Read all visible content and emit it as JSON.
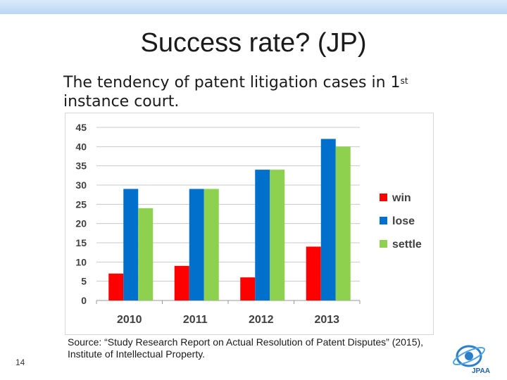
{
  "slide": {
    "title": "Success rate? (JP)",
    "subtitle_main": "The tendency of patent litigation cases in 1",
    "subtitle_sup": "st",
    "subtitle_end": "instance court.",
    "source": "Source: “Study Research Report on Actual Resolution of Patent Disputes” (2015), Institute of Intellectual Property.",
    "page_number": "14",
    "logo_text": "JPAA"
  },
  "colors": {
    "win": "#ff0000",
    "lose": "#0070cd",
    "settle": "#8ed14e",
    "grid": "#c8c8c8"
  },
  "chart_data": {
    "type": "bar",
    "categories": [
      "2010",
      "2011",
      "2012",
      "2013"
    ],
    "series": [
      {
        "name": "win",
        "values": [
          7,
          9,
          6,
          14
        ]
      },
      {
        "name": "lose",
        "values": [
          29,
          29,
          34,
          42
        ]
      },
      {
        "name": "settle",
        "values": [
          24,
          29,
          34,
          40
        ]
      }
    ],
    "ylim": [
      0,
      45
    ],
    "yticks": [
      0,
      5,
      10,
      15,
      20,
      25,
      30,
      35,
      40,
      45
    ],
    "grid": true,
    "legend_position": "right"
  }
}
